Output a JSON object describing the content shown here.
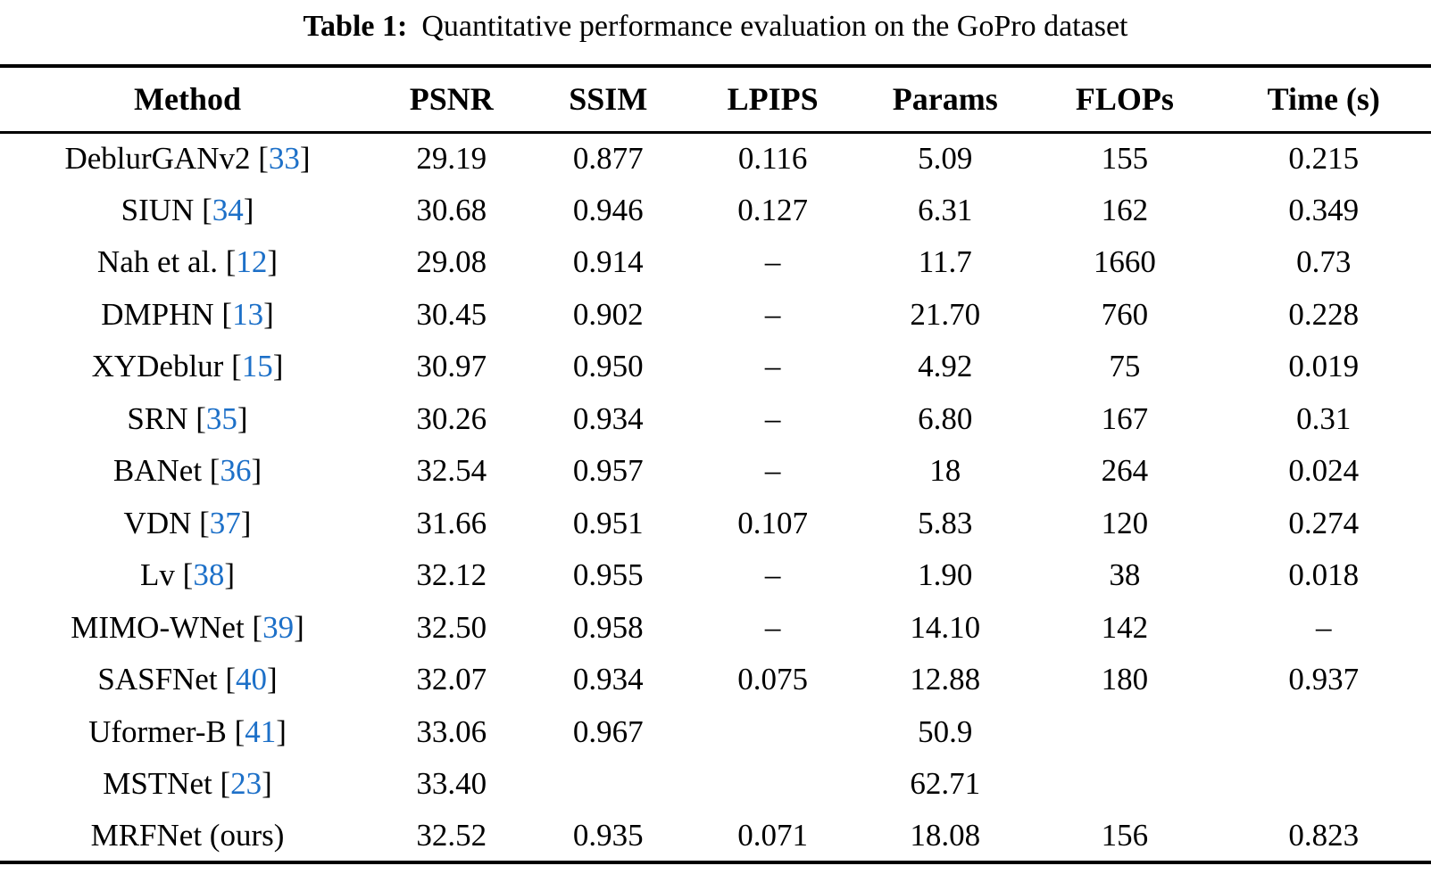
{
  "caption": {
    "label": "Table 1:",
    "text": "Quantitative performance evaluation on the GoPro dataset"
  },
  "colors": {
    "text": "#000000",
    "background": "#ffffff",
    "citation_blue": "#1d70c8"
  },
  "table": {
    "headers": [
      "Method",
      "PSNR",
      "SSIM",
      "LPIPS",
      "Params",
      "FLOPs",
      "Time (s)"
    ],
    "rows": [
      {
        "method": "DeblurGANv2",
        "cite": "33",
        "psnr": "29.19",
        "ssim": "0.877",
        "lpips": "0.116",
        "params": "5.09",
        "flops": "155",
        "time": "0.215"
      },
      {
        "method": "SIUN",
        "cite": "34",
        "psnr": "30.68",
        "ssim": "0.946",
        "lpips": "0.127",
        "params": "6.31",
        "flops": "162",
        "time": "0.349"
      },
      {
        "method": "Nah et al.",
        "cite": "12",
        "psnr": "29.08",
        "ssim": "0.914",
        "lpips": "–",
        "params": "11.7",
        "flops": "1660",
        "time": "0.73"
      },
      {
        "method": "DMPHN",
        "cite": "13",
        "psnr": "30.45",
        "ssim": "0.902",
        "lpips": "–",
        "params": "21.70",
        "flops": "760",
        "time": "0.228"
      },
      {
        "method": "XYDeblur",
        "cite": "15",
        "psnr": "30.97",
        "ssim": "0.950",
        "lpips": "–",
        "params": "4.92",
        "flops": "75",
        "time": "0.019"
      },
      {
        "method": "SRN",
        "cite": "35",
        "psnr": "30.26",
        "ssim": "0.934",
        "lpips": "–",
        "params": "6.80",
        "flops": "167",
        "time": "0.31"
      },
      {
        "method": "BANet",
        "cite": "36",
        "psnr": "32.54",
        "ssim": "0.957",
        "lpips": "–",
        "params": "18",
        "flops": "264",
        "time": "0.024"
      },
      {
        "method": "VDN",
        "cite": "37",
        "psnr": "31.66",
        "ssim": "0.951",
        "lpips": "0.107",
        "params": "5.83",
        "flops": "120",
        "time": "0.274"
      },
      {
        "method": "Lv",
        "cite": "38",
        "psnr": "32.12",
        "ssim": "0.955",
        "lpips": "–",
        "params": "1.90",
        "flops": "38",
        "time": "0.018"
      },
      {
        "method": "MIMO-WNet",
        "cite": "39",
        "psnr": "32.50",
        "ssim": "0.958",
        "lpips": "–",
        "params": "14.10",
        "flops": "142",
        "time": "–"
      },
      {
        "method": "SASFNet",
        "cite": "40",
        "psnr": "32.07",
        "ssim": "0.934",
        "lpips": "0.075",
        "params": "12.88",
        "flops": "180",
        "time": "0.937"
      },
      {
        "method": "Uformer-B",
        "cite": "41",
        "psnr": "33.06",
        "ssim": "0.967",
        "lpips": "",
        "params": "50.9",
        "flops": "",
        "time": ""
      },
      {
        "method": "MSTNet",
        "cite": "23",
        "psnr": "33.40",
        "ssim": "",
        "lpips": "",
        "params": "62.71",
        "flops": "",
        "time": ""
      },
      {
        "method": "MRFNet (ours)",
        "cite": null,
        "psnr": "32.52",
        "ssim": "0.935",
        "lpips": "0.071",
        "params": "18.08",
        "flops": "156",
        "time": "0.823"
      }
    ]
  },
  "chart_data": {
    "type": "table",
    "title": "Table 1: Quantitative performance evaluation on the GoPro dataset",
    "columns": [
      "Method",
      "PSNR",
      "SSIM",
      "LPIPS",
      "Params",
      "FLOPs",
      "Time (s)"
    ],
    "rows": [
      [
        "DeblurGANv2 [33]",
        "29.19",
        "0.877",
        "0.116",
        "5.09",
        "155",
        "0.215"
      ],
      [
        "SIUN [34]",
        "30.68",
        "0.946",
        "0.127",
        "6.31",
        "162",
        "0.349"
      ],
      [
        "Nah et al. [12]",
        "29.08",
        "0.914",
        "–",
        "11.7",
        "1660",
        "0.73"
      ],
      [
        "DMPHN [13]",
        "30.45",
        "0.902",
        "–",
        "21.70",
        "760",
        "0.228"
      ],
      [
        "XYDeblur [15]",
        "30.97",
        "0.950",
        "–",
        "4.92",
        "75",
        "0.019"
      ],
      [
        "SRN [35]",
        "30.26",
        "0.934",
        "–",
        "6.80",
        "167",
        "0.31"
      ],
      [
        "BANet [36]",
        "32.54",
        "0.957",
        "–",
        "18",
        "264",
        "0.024"
      ],
      [
        "VDN [37]",
        "31.66",
        "0.951",
        "0.107",
        "5.83",
        "120",
        "0.274"
      ],
      [
        "Lv [38]",
        "32.12",
        "0.955",
        "–",
        "1.90",
        "38",
        "0.018"
      ],
      [
        "MIMO-WNet [39]",
        "32.50",
        "0.958",
        "–",
        "14.10",
        "142",
        "–"
      ],
      [
        "SASFNet [40]",
        "32.07",
        "0.934",
        "0.075",
        "12.88",
        "180",
        "0.937"
      ],
      [
        "Uformer-B [41]",
        "33.06",
        "0.967",
        "",
        "50.9",
        "",
        ""
      ],
      [
        "MSTNet [23]",
        "33.40",
        "",
        "",
        "62.71",
        "",
        ""
      ],
      [
        "MRFNet (ours)",
        "32.52",
        "0.935",
        "0.071",
        "18.08",
        "156",
        "0.823"
      ]
    ]
  }
}
